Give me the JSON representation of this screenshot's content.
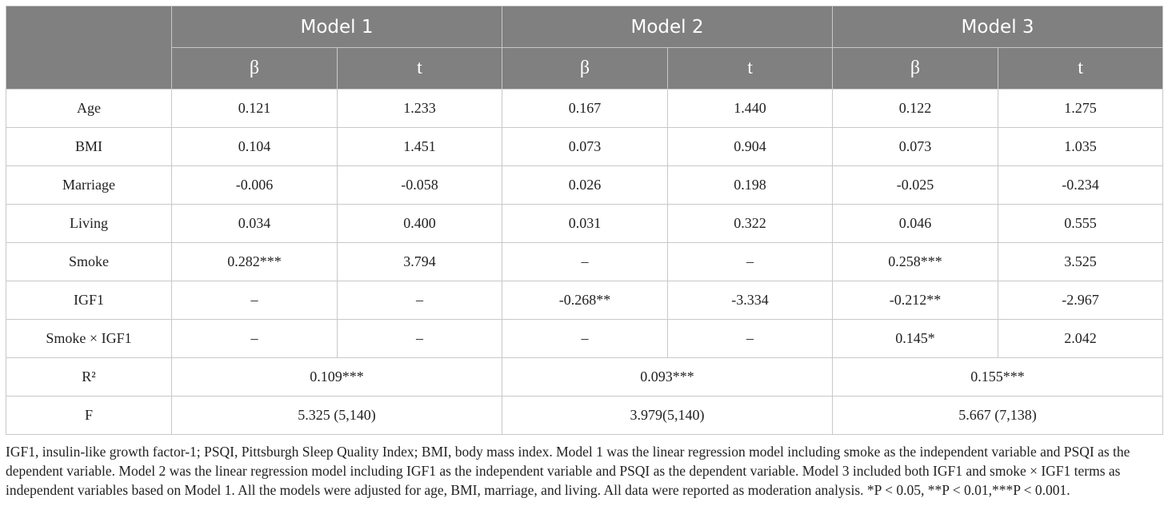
{
  "table": {
    "model_headers": [
      "Model 1",
      "Model 2",
      "Model 3"
    ],
    "sub_headers": [
      "β",
      "t",
      "β",
      "t",
      "β",
      "t"
    ],
    "rows": [
      {
        "label": "Age",
        "cells": [
          "0.121",
          "1.233",
          "0.167",
          "1.440",
          "0.122",
          "1.275"
        ]
      },
      {
        "label": "BMI",
        "cells": [
          "0.104",
          "1.451",
          "0.073",
          "0.904",
          "0.073",
          "1.035"
        ]
      },
      {
        "label": "Marriage",
        "cells": [
          "-0.006",
          "-0.058",
          "0.026",
          "0.198",
          "-0.025",
          "-0.234"
        ]
      },
      {
        "label": "Living",
        "cells": [
          "0.034",
          "0.400",
          "0.031",
          "0.322",
          "0.046",
          "0.555"
        ]
      },
      {
        "label": "Smoke",
        "cells": [
          "0.282***",
          "3.794",
          "–",
          "–",
          "0.258***",
          "3.525"
        ]
      },
      {
        "label": "IGF1",
        "cells": [
          "–",
          "–",
          "-0.268**",
          "-3.334",
          "-0.212**",
          "-2.967"
        ]
      },
      {
        "label": "Smoke × IGF1",
        "cells": [
          "–",
          "–",
          "–",
          "–",
          "0.145*",
          "2.042"
        ]
      }
    ],
    "summary_rows": [
      {
        "label": "R²",
        "cells": [
          "0.109***",
          "0.093***",
          "0.155***"
        ]
      },
      {
        "label": "F",
        "cells": [
          "5.325 (5,140)",
          "3.979(5,140)",
          "5.667 (7,138)"
        ]
      }
    ]
  },
  "footnote": "IGF1, insulin-like growth factor-1; PSQI, Pittsburgh Sleep Quality Index; BMI, body mass index. Model 1 was the linear regression model including smoke as the independent variable and PSQI as the dependent variable. Model 2 was the linear regression model including IGF1 as the independent variable and PSQI as the dependent variable. Model 3 included both IGF1 and smoke × IGF1 terms as independent variables based on Model 1. All the models were adjusted for age, BMI, marriage, and living. All data were reported as moderation analysis. *P < 0.05, **P < 0.01,***P < 0.001.",
  "colors": {
    "header_bg": "#808080",
    "header_text": "#ffffff",
    "border": "#c8c8c8",
    "body_text": "#222222"
  }
}
